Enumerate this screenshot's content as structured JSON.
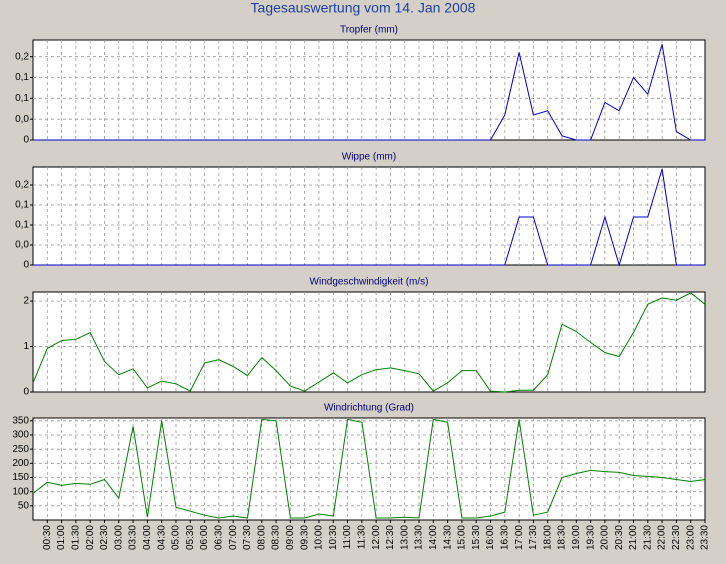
{
  "title": "Tagesauswertung vom 14. Jan 2008",
  "chart_data": [
    {
      "type": "line",
      "title": "Tropfer (mm)",
      "color": "#0000cc",
      "grid": true,
      "ylim": [
        0,
        0.24
      ],
      "yticks": [
        0,
        {
          "value": 0.05,
          "label": "0,0"
        },
        {
          "value": 0.1,
          "label": "0,1"
        },
        {
          "value": 0.15,
          "label": "0,1"
        },
        {
          "value": 0.2,
          "label": "0,2"
        }
      ],
      "values": [
        0,
        0,
        0,
        0,
        0,
        0,
        0,
        0,
        0,
        0,
        0,
        0,
        0,
        0,
        0,
        0,
        0,
        0,
        0,
        0,
        0,
        0,
        0,
        0,
        0,
        0,
        0,
        0,
        0,
        0,
        0,
        0,
        0,
        0.06,
        0.21,
        0.06,
        0.07,
        0.01,
        0,
        0,
        0.09,
        0.07,
        0.15,
        0.11,
        0.23,
        0.02,
        0,
        0
      ]
    },
    {
      "type": "line",
      "title": "Wippe (mm)",
      "color": "#0000cc",
      "grid": true,
      "ylim": [
        0,
        0.245
      ],
      "yticks": [
        0,
        {
          "value": 0.05,
          "label": "0,0"
        },
        {
          "value": 0.1,
          "label": "0,1"
        },
        {
          "value": 0.15,
          "label": "0,1"
        },
        {
          "value": 0.2,
          "label": "0,2"
        }
      ],
      "values": [
        0,
        0,
        0,
        0,
        0,
        0,
        0,
        0,
        0,
        0,
        0,
        0,
        0,
        0,
        0,
        0,
        0,
        0,
        0,
        0,
        0,
        0,
        0,
        0,
        0,
        0,
        0,
        0,
        0,
        0,
        0,
        0,
        0,
        0,
        0.12,
        0.12,
        0,
        0,
        0,
        0,
        0.12,
        0,
        0.12,
        0.12,
        0.24,
        0,
        0,
        0
      ]
    },
    {
      "type": "line",
      "title": "Windgeschwindigkeit (m/s)",
      "color": "#008000",
      "grid": true,
      "ylim": [
        0,
        2.2
      ],
      "yticks": [
        0,
        1,
        2
      ],
      "values": [
        0.2,
        0.96,
        1.13,
        1.16,
        1.31,
        0.67,
        0.38,
        0.51,
        0.09,
        0.24,
        0.18,
        0.02,
        0.64,
        0.71,
        0.56,
        0.36,
        0.76,
        0.47,
        0.13,
        0.02,
        0.22,
        0.42,
        0.2,
        0.38,
        0.49,
        0.53,
        0.47,
        0.4,
        0.02,
        0.2,
        0.47,
        0.47,
        0.02,
        0,
        0.04,
        0.04,
        0.38,
        1.49,
        1.33,
        1.09,
        0.87,
        0.78,
        1.31,
        1.93,
        2.07,
        2.02,
        2.18,
        1.93
      ]
    },
    {
      "type": "line",
      "title": "Windrichtung (Grad)",
      "color": "#008000",
      "grid": true,
      "ylim": [
        0,
        360
      ],
      "yticks": [
        50,
        100,
        150,
        200,
        250,
        300,
        350
      ],
      "categories": [
        null,
        "00:30",
        "01:00",
        "01:30",
        "02:00",
        "02:30",
        "03:00",
        "03:30",
        "04:00",
        "04:30",
        "05:00",
        "05:30",
        "06:00",
        "06:30",
        "07:00",
        "07:30",
        "08:00",
        "08:30",
        "09:00",
        "09:30",
        "10:00",
        "10:30",
        "11:00",
        "11:30",
        "12:00",
        "12:30",
        "13:00",
        "13:30",
        "14:00",
        "14:30",
        "15:00",
        "15:30",
        "16:00",
        "16:30",
        "17:00",
        "17:30",
        "18:00",
        "18:30",
        "19:00",
        "19:30",
        "20:00",
        "20:30",
        "21:00",
        "21:30",
        "22:00",
        "22:30",
        "23:00",
        "23:30"
      ],
      "values": [
        94,
        133,
        122,
        129,
        126,
        143,
        77,
        330,
        10,
        350,
        45,
        31,
        17,
        7,
        14,
        7,
        355,
        350,
        7,
        7,
        21,
        14,
        355,
        345,
        7,
        7,
        10,
        7,
        355,
        345,
        7,
        7,
        14,
        28,
        355,
        17,
        28,
        150,
        164,
        175,
        171,
        168,
        157,
        154,
        150,
        143,
        136,
        143
      ]
    }
  ]
}
